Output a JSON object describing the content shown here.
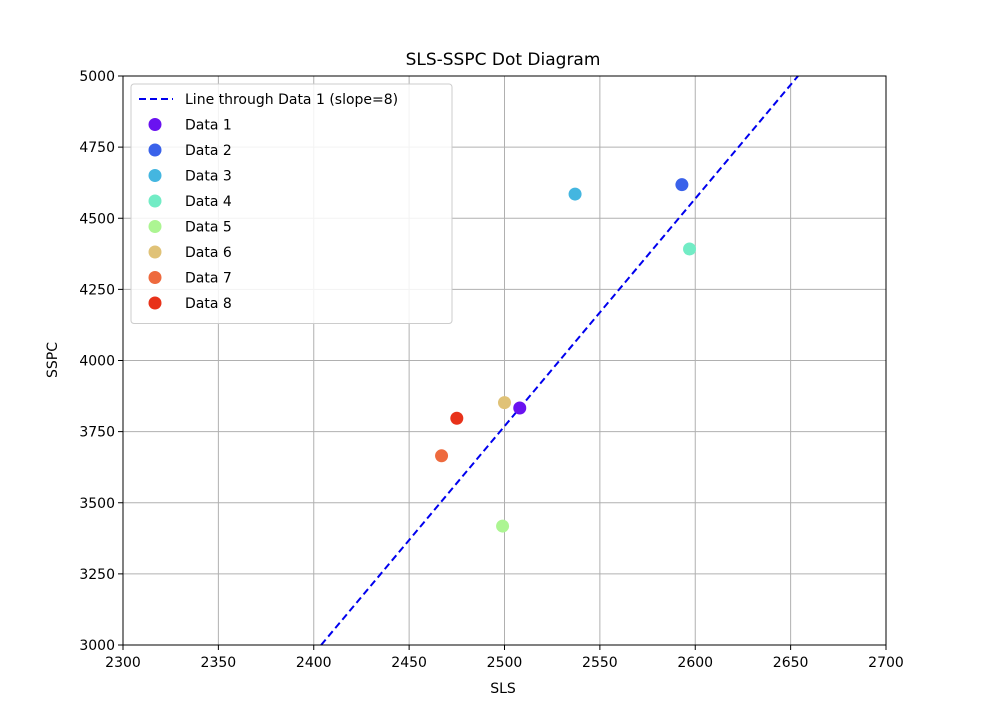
{
  "chart_data": {
    "type": "scatter",
    "title": "SLS-SSPC Dot Diagram",
    "xlabel": "SLS",
    "ylabel": "SSPC",
    "xlim": [
      2300,
      2700
    ],
    "ylim": [
      3000,
      5000
    ],
    "xticks": [
      "2300",
      "2350",
      "2400",
      "2450",
      "2500",
      "2550",
      "2600",
      "2650",
      "2700"
    ],
    "yticks": [
      "3000",
      "3250",
      "3500",
      "3750",
      "4000",
      "4250",
      "4500",
      "4750",
      "5000"
    ],
    "grid": true,
    "legend_position": "upper-left",
    "line": {
      "label": "Line through Data 1 (slope=8)",
      "slope": 8,
      "through": [
        2508,
        3833
      ],
      "color": "#0000ee",
      "style": "dashed"
    },
    "series": [
      {
        "name": "Data 1",
        "x": 2508,
        "y": 3833,
        "color": "#6a12f0"
      },
      {
        "name": "Data 2",
        "x": 2593,
        "y": 4618,
        "color": "#3a62ea"
      },
      {
        "name": "Data 3",
        "x": 2537,
        "y": 4585,
        "color": "#44b6e0"
      },
      {
        "name": "Data 4",
        "x": 2597,
        "y": 4392,
        "color": "#72ecc5"
      },
      {
        "name": "Data 5",
        "x": 2499,
        "y": 3418,
        "color": "#acf592"
      },
      {
        "name": "Data 6",
        "x": 2500,
        "y": 3852,
        "color": "#e0c277"
      },
      {
        "name": "Data 7",
        "x": 2467,
        "y": 3665,
        "color": "#ee6a3e"
      },
      {
        "name": "Data 8",
        "x": 2475,
        "y": 3797,
        "color": "#e8321a"
      }
    ]
  }
}
